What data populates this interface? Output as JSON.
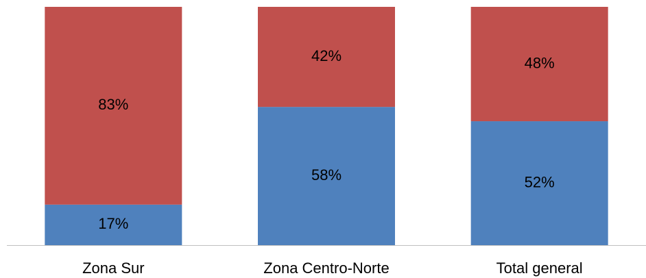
{
  "chart_data": {
    "type": "stacked_bar",
    "categories": [
      "Zona Sur",
      "Zona Centro-Norte",
      "Total general"
    ],
    "series": [
      {
        "color": "#4f81bd",
        "values": [
          17,
          58,
          52
        ],
        "value_labels": [
          "17%",
          "58%",
          "52%"
        ]
      },
      {
        "color": "#c0504d",
        "values": [
          83,
          42,
          48
        ],
        "value_labels": [
          "83%",
          "42%",
          "48%"
        ]
      }
    ],
    "ylim": [
      0,
      100
    ]
  }
}
